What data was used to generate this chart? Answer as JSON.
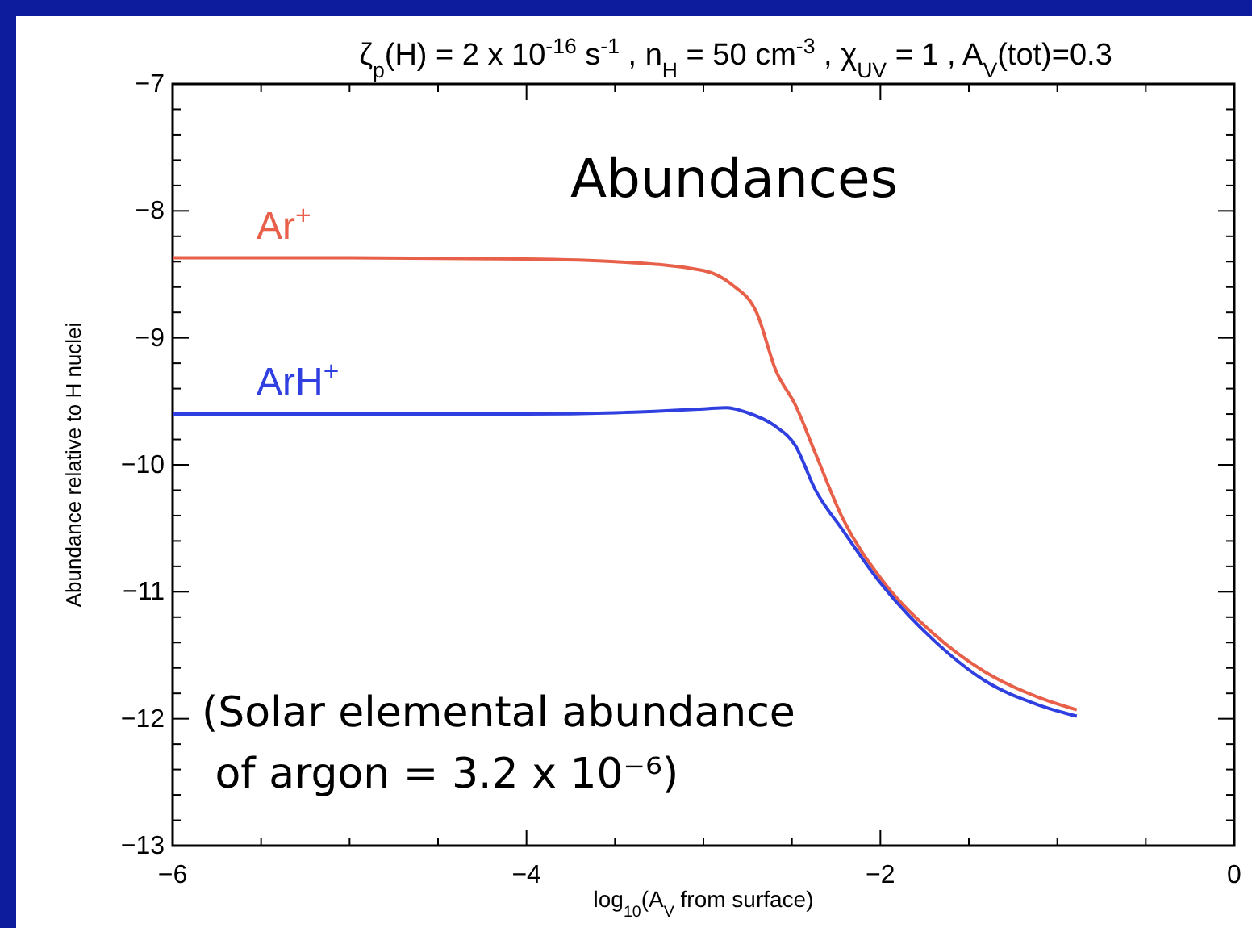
{
  "chart_data": {
    "type": "line",
    "title": "ζ$_{p}$(H) = 2 x 10$^{-16}$ s$^{-1}$ , n$_{H}$ = 50 cm$^{-3}$ , χ$_{UV}$ = 1 , A$_{V}$(tot)=0.3",
    "xlabel": "log$_{10}$(A$_{V}$ from surface)",
    "ylabel": "Abundance relative to H nuclei",
    "annotations": [
      "Abundances",
      "(Solar elemental abundance\n of argon = 3.2 x 10⁻⁶)"
    ],
    "xlim": [
      -6,
      0
    ],
    "ylim": [
      -13,
      -7
    ],
    "xticks": [
      -6,
      {
        "value": -5.5,
        "label": null
      },
      {
        "value": -5,
        "label": null
      },
      {
        "value": -4.5,
        "label": null
      },
      -4,
      {
        "value": -3.5,
        "label": null
      },
      {
        "value": -3,
        "label": null
      },
      {
        "value": -2.5,
        "label": null
      },
      -2,
      {
        "value": -1.5,
        "label": null
      },
      {
        "value": -1,
        "label": null
      },
      {
        "value": -0.5,
        "label": null
      },
      0
    ],
    "yticks": [
      -13,
      -12,
      -11,
      -10,
      -9,
      -8,
      -7
    ],
    "grid": false,
    "legend": false,
    "series": [
      {
        "name": "Ar$^{+}$",
        "color": "#e8604a",
        "x": [
          -6,
          -5,
          -4,
          -3.5,
          -3.0,
          -2.84,
          -2.7,
          -2.59,
          -2.48,
          -2.37,
          -2.21,
          -2.0,
          -1.7,
          -1.41,
          -1.11,
          -0.89
        ],
        "values": [
          -8.37,
          -8.37,
          -8.38,
          -8.4,
          -8.47,
          -8.58,
          -8.8,
          -9.26,
          -9.53,
          -9.9,
          -10.43,
          -10.89,
          -11.33,
          -11.63,
          -11.83,
          -11.93
        ]
      },
      {
        "name": "ArH$^{+}$",
        "color": "#3040e0",
        "x": [
          -6,
          -5,
          -4,
          -3.5,
          -3.0,
          -2.87,
          -2.75,
          -2.6,
          -2.48,
          -2.37,
          -2.21,
          -2.0,
          -1.7,
          -1.41,
          -1.11,
          -0.89
        ],
        "values": [
          -9.6,
          -9.6,
          -9.6,
          -9.59,
          -9.56,
          -9.55,
          -9.59,
          -9.69,
          -9.85,
          -10.19,
          -10.52,
          -10.93,
          -11.38,
          -11.7,
          -11.89,
          -11.98
        ]
      }
    ]
  }
}
